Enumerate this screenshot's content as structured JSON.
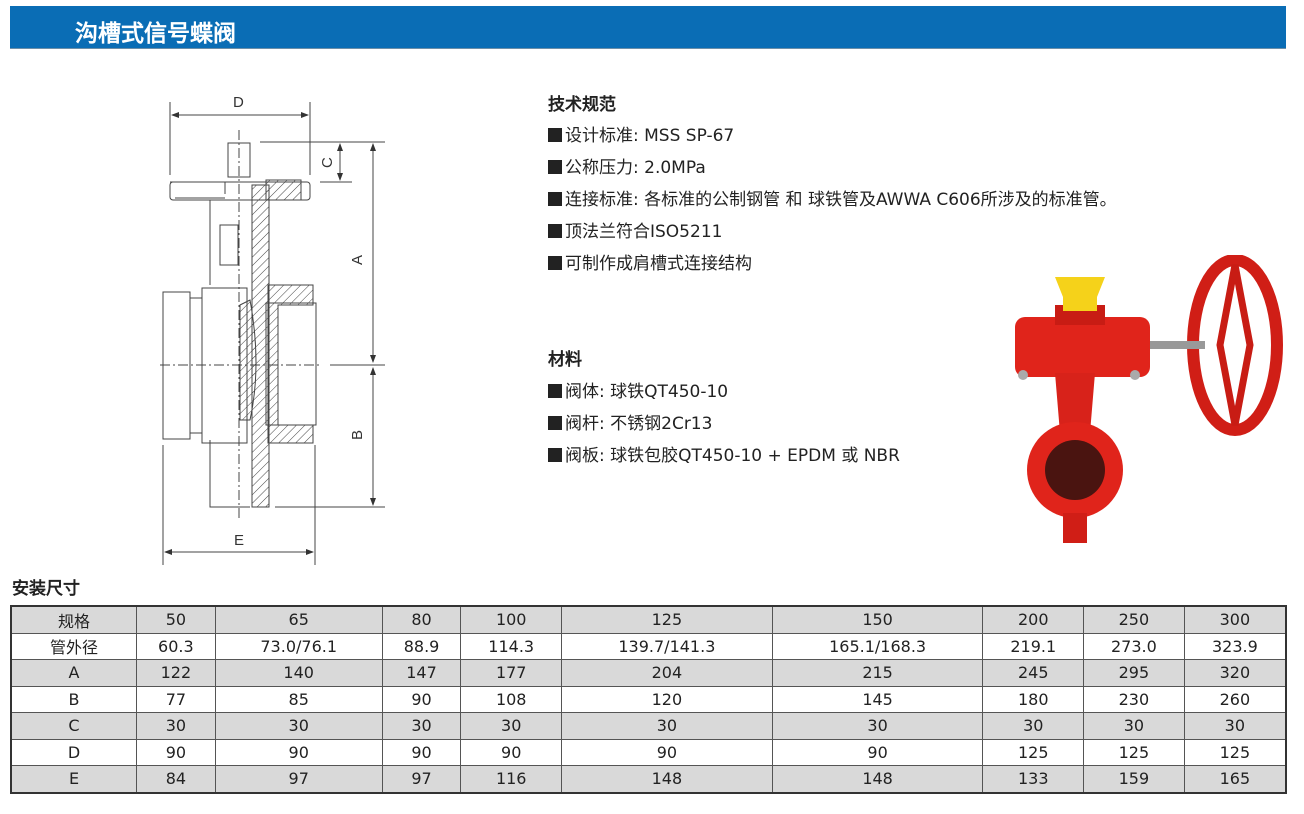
{
  "header": {
    "title": "沟槽式信号蝶阀"
  },
  "diagram": {
    "labels": {
      "D": "D",
      "C": "C",
      "A": "A",
      "B": "B",
      "E": "E"
    }
  },
  "specs": {
    "title": "技术规范",
    "items": [
      "设计标准: MSS SP-67",
      "公称压力: 2.0MPa",
      "连接标准: 各标准的公制钢管 和 球铁管及AWWA C606所涉及的标准管。",
      "顶法兰符合ISO5211",
      "可制作成肩槽式连接结构"
    ]
  },
  "materials": {
    "title": "材料",
    "items": [
      "阀体: 球铁QT450-10",
      "阀杆: 不锈钢2Cr13",
      "阀板: 球铁包胶QT450-10 + EPDM 或 NBR"
    ]
  },
  "product_photo": {
    "icon": "red-grooved-butterfly-valve-with-handwheel",
    "colors": {
      "body": "#e0241b",
      "indicator": "#f5d21a"
    }
  },
  "table": {
    "title": "安装尺寸",
    "rows": [
      [
        "规格",
        "50",
        "65",
        "80",
        "100",
        "125",
        "150",
        "200",
        "250",
        "300"
      ],
      [
        "管外径",
        "60.3",
        "73.0/76.1",
        "88.9",
        "114.3",
        "139.7/141.3",
        "165.1/168.3",
        "219.1",
        "273.0",
        "323.9"
      ],
      [
        "A",
        "122",
        "140",
        "147",
        "177",
        "204",
        "215",
        "245",
        "295",
        "320"
      ],
      [
        "B",
        "77",
        "85",
        "90",
        "108",
        "120",
        "145",
        "180",
        "230",
        "260"
      ],
      [
        "C",
        "30",
        "30",
        "30",
        "30",
        "30",
        "30",
        "30",
        "30",
        "30"
      ],
      [
        "D",
        "90",
        "90",
        "90",
        "90",
        "90",
        "90",
        "125",
        "125",
        "125"
      ],
      [
        "E",
        "84",
        "97",
        "97",
        "116",
        "148",
        "148",
        "133",
        "159",
        "165"
      ]
    ]
  },
  "colors": {
    "banner": "#0a6db5",
    "row_shade": "#d9d9d9"
  }
}
